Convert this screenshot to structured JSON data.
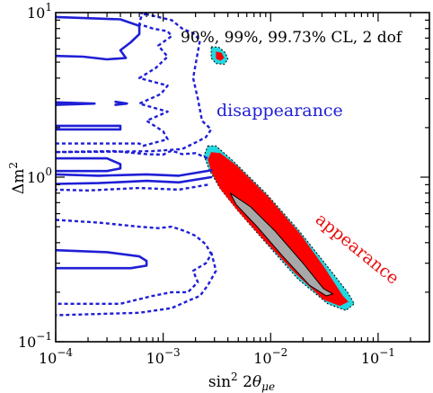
{
  "chart_data": {
    "type": "contour",
    "xlabel": "sin 2θμe",
    "ylabel": "Δm 2",
    "x_scale": "log",
    "y_scale": "log",
    "xlim": [
      0.0001,
      0.3
    ],
    "ylim": [
      0.1,
      10
    ],
    "x_ticks": [
      {
        "value": 0.0001,
        "base": "10",
        "exp": "−4"
      },
      {
        "value": 0.001,
        "base": "10",
        "exp": "−3"
      },
      {
        "value": 0.01,
        "base": "10",
        "exp": "−2"
      },
      {
        "value": 0.1,
        "base": "10",
        "exp": "−1"
      }
    ],
    "y_ticks": [
      {
        "value": 0.1,
        "base": "10",
        "exp": "−1"
      },
      {
        "value": 1,
        "base": "10",
        "exp": "0"
      },
      {
        "value": 10,
        "base": "10",
        "exp": "1"
      }
    ],
    "annotations": {
      "cl_text": "90%, 99%, 99.73% CL, 2 dof",
      "disappearance": "disappearance",
      "appearance": "appearance"
    },
    "colors": {
      "cl90": "#a8a8a8",
      "cl99": "#ff0000",
      "cl9973": "#22d8e0",
      "contour_line": "#1f1fd6",
      "appearance_text": "#e81010",
      "disappearance_text": "#1f1fd6"
    },
    "series": [
      {
        "name": "appearance 99.73% CL",
        "style": "cyan-fill",
        "x": [
          0.0026,
          0.0031,
          0.0045,
          0.009,
          0.018,
          0.032,
          0.052,
          0.06,
          0.05,
          0.034,
          0.018,
          0.009,
          0.005,
          0.0034,
          0.0027,
          0.0024,
          0.0026
        ],
        "y": [
          1.55,
          1.55,
          1.25,
          0.8,
          0.48,
          0.3,
          0.2,
          0.17,
          0.155,
          0.17,
          0.24,
          0.4,
          0.62,
          0.85,
          1.1,
          1.35,
          1.55
        ]
      },
      {
        "name": "appearance 99% CL",
        "style": "red-fill",
        "x": [
          0.0028,
          0.0034,
          0.0048,
          0.0095,
          0.019,
          0.032,
          0.047,
          0.053,
          0.044,
          0.031,
          0.017,
          0.0085,
          0.0048,
          0.0034,
          0.0028,
          0.0026,
          0.0028
        ],
        "y": [
          1.42,
          1.4,
          1.18,
          0.76,
          0.45,
          0.28,
          0.19,
          0.175,
          0.165,
          0.18,
          0.26,
          0.42,
          0.64,
          0.85,
          1.08,
          1.28,
          1.42
        ]
      },
      {
        "name": "appearance 90% CL",
        "style": "gray-fill",
        "x": [
          0.0042,
          0.0065,
          0.011,
          0.02,
          0.031,
          0.038,
          0.033,
          0.023,
          0.013,
          0.0075,
          0.0048,
          0.0042
        ],
        "y": [
          0.8,
          0.66,
          0.47,
          0.3,
          0.21,
          0.195,
          0.19,
          0.22,
          0.33,
          0.5,
          0.68,
          0.8
        ]
      },
      {
        "name": "island 99.73% CL",
        "style": "cyan-fill",
        "x": [
          0.0028,
          0.0033,
          0.0038,
          0.004,
          0.0037,
          0.0031,
          0.0028,
          0.0028
        ],
        "y": [
          6.2,
          6.15,
          5.7,
          5.2,
          4.85,
          4.9,
          5.3,
          6.2
        ]
      },
      {
        "name": "island 99% CL",
        "style": "red-fill",
        "x": [
          0.0031,
          0.0035,
          0.0037,
          0.0034,
          0.0031,
          0.0031
        ],
        "y": [
          5.8,
          5.7,
          5.3,
          5.1,
          5.25,
          5.8
        ]
      },
      {
        "name": "disappearance 90% CL (a)",
        "style": "solid",
        "x": [
          0.0001,
          0.0004,
          0.0006,
          0.0006,
          0.0005,
          0.0004,
          0.00045,
          0.0003,
          0.00018,
          0.0001
        ],
        "y": [
          9.4,
          9.1,
          8.3,
          7.4,
          6.6,
          5.9,
          5.3,
          5.2,
          5.4,
          5.45
        ]
      },
      {
        "name": "disappearance 90% CL (b)",
        "style": "solid",
        "x": [
          0.0001,
          0.00023,
          0.0001
        ],
        "y": [
          2.85,
          2.8,
          2.75
        ]
      },
      {
        "name": "disappearance 90% CL (c)",
        "style": "solid",
        "x": [
          0.00036,
          0.00046,
          0.00036
        ],
        "y": [
          2.87,
          2.8,
          2.75
        ]
      },
      {
        "name": "disappearance 90% CL (d)",
        "style": "solid",
        "x": [
          0.0001,
          0.0004,
          0.0004,
          0.0001
        ],
        "y": [
          2.05,
          2.05,
          1.95,
          1.95
        ]
      },
      {
        "name": "disappearance 90% CL (e)",
        "style": "solid",
        "x": [
          0.0001,
          0.0003,
          0.0004,
          0.0004,
          0.0003,
          0.0001
        ],
        "y": [
          1.3,
          1.3,
          1.2,
          1.13,
          1.09,
          1.09
        ]
      },
      {
        "name": "disappearance 90% CL (f)",
        "style": "solid",
        "x": [
          0.0001,
          0.00025,
          0.0007,
          0.0014,
          0.0028
        ],
        "y": [
          1.04,
          1.02,
          1.04,
          1.02,
          1.1
        ]
      },
      {
        "name": "disappearance 90% CL (g)",
        "style": "solid",
        "x": [
          0.0028,
          0.0014,
          0.0007,
          0.00025,
          0.0001
        ],
        "y": [
          1.0,
          0.93,
          0.95,
          0.92,
          0.91
        ]
      },
      {
        "name": "disappearance 90% CL (h)",
        "style": "solid",
        "x": [
          0.0001,
          0.0003,
          0.0006,
          0.0007,
          0.0007,
          0.0005,
          0.0002,
          0.0001
        ],
        "y": [
          0.36,
          0.35,
          0.33,
          0.31,
          0.29,
          0.28,
          0.28,
          0.28
        ]
      },
      {
        "name": "disappearance 99% CL (a)",
        "style": "dashed",
        "x": [
          0.0007,
          0.00062,
          0.0006,
          0.0008,
          0.0011,
          0.0012,
          0.0009,
          0.0011,
          0.00085,
          0.0006,
          0.0011,
          0.00095,
          0.0006,
          0.0011,
          0.0007,
          0.001,
          0.0011,
          0.00065,
          0.0006,
          0.00035,
          0.0001
        ],
        "y": [
          10,
          9.3,
          8.5,
          8.0,
          7.7,
          7.2,
          6.3,
          5.4,
          4.6,
          4.0,
          3.6,
          3.2,
          2.8,
          2.5,
          2.2,
          1.9,
          1.7,
          1.55,
          1.6,
          1.6,
          1.6
        ]
      },
      {
        "name": "disappearance 99% CL (b)",
        "style": "dashed",
        "x": [
          0.0001,
          0.00035,
          0.0007,
          0.001,
          0.0012,
          0.0015,
          0.002,
          0.0026
        ],
        "y": [
          1.42,
          1.44,
          1.38,
          1.37,
          1.45,
          1.38,
          1.4,
          1.3
        ]
      },
      {
        "name": "disappearance 99% CL (c)",
        "style": "dashed",
        "x": [
          0.0026,
          0.0014,
          0.0006,
          0.0002,
          0.0001
        ],
        "y": [
          0.9,
          0.84,
          0.86,
          0.83,
          0.84
        ]
      },
      {
        "name": "disappearance 99% CL (d)",
        "style": "dashed",
        "x": [
          0.0001,
          0.00025,
          0.0006,
          0.0009,
          0.0012,
          0.0016,
          0.002,
          0.0025,
          0.0028,
          0.0025,
          0.0019,
          0.0021,
          0.0017,
          0.0012,
          0.0008,
          0.0004,
          0.0001
        ],
        "y": [
          0.55,
          0.53,
          0.5,
          0.49,
          0.5,
          0.47,
          0.44,
          0.39,
          0.34,
          0.3,
          0.27,
          0.23,
          0.2,
          0.2,
          0.19,
          0.17,
          0.17
        ]
      },
      {
        "name": "disappearance 99.73% CL",
        "style": "dashed",
        "x": [
          0.0006,
          0.0012,
          0.0015,
          0.0019,
          0.0022,
          0.0019,
          0.0021,
          0.0023,
          0.0028,
          0.0025,
          0.0021,
          0.0015,
          0.0008,
          0.0004,
          0.0001
        ],
        "y": [
          10,
          9.0,
          8.0,
          7.5,
          6.8,
          4.0,
          3.0,
          2.2,
          1.95,
          1.75,
          1.65,
          1.48,
          1.44,
          1.43,
          1.42
        ]
      },
      {
        "name": "disappearance 99.73% CL (lower)",
        "style": "dashed",
        "x": [
          0.0028,
          0.0031,
          0.0026,
          0.0022,
          0.0018,
          0.0012,
          0.0006,
          0.0001
        ],
        "y": [
          0.35,
          0.27,
          0.22,
          0.19,
          0.18,
          0.16,
          0.15,
          0.145
        ]
      }
    ]
  }
}
